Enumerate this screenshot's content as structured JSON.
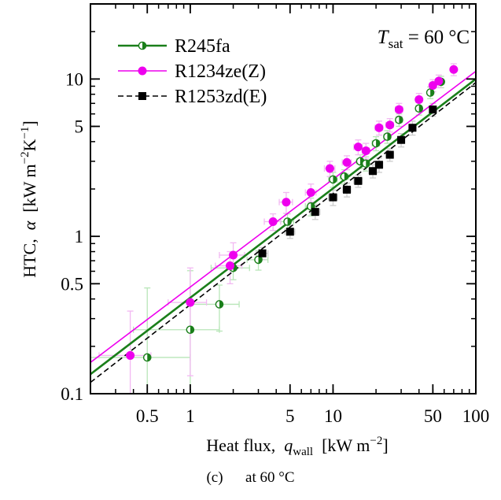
{
  "chart_data": {
    "type": "scatter",
    "annotation": {
      "prefix": "T",
      "subscript": "sat",
      "suffix": " = 60 °C"
    },
    "xlabel": {
      "text": "Heat flux,  ",
      "symbol": "q",
      "subscript": "wall",
      "units": "  [kW m",
      "units_sup": "−2",
      "units_end": "]"
    },
    "ylabel": {
      "text": "HTC,  ",
      "symbol": "α",
      "units": "  [kW m",
      "units_sup1": "−2",
      "units_mid": "K",
      "units_sup2": "−1",
      "units_end": "]"
    },
    "x_scale": "log",
    "y_scale": "log",
    "xlim": [
      0.2,
      100
    ],
    "ylim": [
      0.1,
      30
    ],
    "x_ticks": [
      {
        "v": 0.5,
        "label": "0.5"
      },
      {
        "v": 1,
        "label": "1"
      },
      {
        "v": 5,
        "label": "5"
      },
      {
        "v": 10,
        "label": "10"
      },
      {
        "v": 50,
        "label": "50"
      },
      {
        "v": 100,
        "label": "100"
      }
    ],
    "y_ticks": [
      {
        "v": 0.1,
        "label": "0.1"
      },
      {
        "v": 0.5,
        "label": "0.5"
      },
      {
        "v": 1,
        "label": "1"
      },
      {
        "v": 5,
        "label": "5"
      },
      {
        "v": 10,
        "label": "10"
      }
    ],
    "legend_position": "top-left",
    "series": [
      {
        "name": "R245fa",
        "color": "#1a7f1a",
        "errorbar_color": "#b8e6b8",
        "marker": "half-filled-circle",
        "line_style": "solid",
        "fit": [
          [
            0.2,
            0.133
          ],
          [
            100,
            10.0
          ]
        ],
        "points": [
          {
            "x": 0.5,
            "y": 0.17,
            "xerr": 0.5,
            "yerr": 0.3
          },
          {
            "x": 1.0,
            "y": 0.255,
            "xerr": 0.6,
            "yerr": 0.35
          },
          {
            "x": 1.6,
            "y": 0.37,
            "xerr": 0.6,
            "yerr": 0.12
          },
          {
            "x": 2.0,
            "y": 0.63,
            "xerr": 0.6,
            "yerr": 0.1
          },
          {
            "x": 3.0,
            "y": 0.71,
            "xerr": 0.5,
            "yerr": 0.1
          },
          {
            "x": 4.8,
            "y": 1.24,
            "xerr": 0.5,
            "yerr": 0.15
          },
          {
            "x": 7.0,
            "y": 1.55,
            "xerr": 0.6,
            "yerr": 0.2
          },
          {
            "x": 10.0,
            "y": 2.3,
            "xerr": 0.7,
            "yerr": 0.25
          },
          {
            "x": 12.0,
            "y": 2.4,
            "xerr": 0.8,
            "yerr": 0.25
          },
          {
            "x": 15.5,
            "y": 3.0,
            "xerr": 0.9,
            "yerr": 0.3
          },
          {
            "x": 17.0,
            "y": 2.9,
            "xerr": 1.0,
            "yerr": 0.3
          },
          {
            "x": 20.0,
            "y": 3.9,
            "xerr": 1.2,
            "yerr": 0.4
          },
          {
            "x": 24.0,
            "y": 4.3,
            "xerr": 1.3,
            "yerr": 0.4
          },
          {
            "x": 29.0,
            "y": 5.5,
            "xerr": 1.5,
            "yerr": 0.5
          },
          {
            "x": 40.0,
            "y": 6.5,
            "xerr": 2.0,
            "yerr": 0.6
          },
          {
            "x": 48.0,
            "y": 8.2,
            "xerr": 2.0,
            "yerr": 0.7
          },
          {
            "x": 57.0,
            "y": 9.6,
            "xerr": 2.5,
            "yerr": 0.8
          }
        ]
      },
      {
        "name": "R1234ze(Z)",
        "color": "#ee00ee",
        "errorbar_color": "#f2b8f2",
        "marker": "filled-circle",
        "line_style": "solid",
        "fit": [
          [
            0.2,
            0.158
          ],
          [
            100,
            11.2
          ]
        ],
        "points": [
          {
            "x": 0.38,
            "y": 0.175,
            "xerr": 0.15,
            "yerr": 0.16
          },
          {
            "x": 1.0,
            "y": 0.38,
            "xerr": 0.3,
            "yerr": 0.25
          },
          {
            "x": 1.9,
            "y": 0.65,
            "xerr": 0.4,
            "yerr": 0.15
          },
          {
            "x": 2.0,
            "y": 0.76,
            "xerr": 0.4,
            "yerr": 0.15
          },
          {
            "x": 3.8,
            "y": 1.24,
            "xerr": 0.5,
            "yerr": 0.15
          },
          {
            "x": 4.7,
            "y": 1.65,
            "xerr": 0.5,
            "yerr": 0.25
          },
          {
            "x": 7.0,
            "y": 1.9,
            "xerr": 0.6,
            "yerr": 0.25
          },
          {
            "x": 9.5,
            "y": 2.7,
            "xerr": 0.8,
            "yerr": 0.3
          },
          {
            "x": 12.5,
            "y": 2.95,
            "xerr": 0.9,
            "yerr": 0.3
          },
          {
            "x": 15.0,
            "y": 3.7,
            "xerr": 1.0,
            "yerr": 0.4
          },
          {
            "x": 17.0,
            "y": 3.5,
            "xerr": 1.0,
            "yerr": 0.4
          },
          {
            "x": 21.0,
            "y": 4.9,
            "xerr": 1.3,
            "yerr": 0.5
          },
          {
            "x": 25.0,
            "y": 5.1,
            "xerr": 1.5,
            "yerr": 0.5
          },
          {
            "x": 29.0,
            "y": 6.4,
            "xerr": 1.7,
            "yerr": 0.6
          },
          {
            "x": 40.0,
            "y": 7.4,
            "xerr": 2.0,
            "yerr": 0.7
          },
          {
            "x": 50.0,
            "y": 9.1,
            "xerr": 2.5,
            "yerr": 0.8
          },
          {
            "x": 55.0,
            "y": 9.7,
            "xerr": 2.5,
            "yerr": 0.9
          },
          {
            "x": 70.0,
            "y": 11.5,
            "xerr": 3.0,
            "yerr": 1.0
          }
        ]
      },
      {
        "name": "R1253zd(E)",
        "color": "#000000",
        "errorbar_color": "#cccccc",
        "marker": "filled-square",
        "line_style": "dashed",
        "fit": [
          [
            0.2,
            0.118
          ],
          [
            100,
            9.5
          ]
        ],
        "points": [
          {
            "x": 3.2,
            "y": 0.78,
            "xerr": 0.3,
            "yerr": 0.07
          },
          {
            "x": 5.0,
            "y": 1.07,
            "xerr": 0.4,
            "yerr": 0.1
          },
          {
            "x": 7.5,
            "y": 1.43,
            "xerr": 0.6,
            "yerr": 0.15
          },
          {
            "x": 10.0,
            "y": 1.77,
            "xerr": 0.7,
            "yerr": 0.2
          },
          {
            "x": 12.5,
            "y": 1.98,
            "xerr": 0.8,
            "yerr": 0.2
          },
          {
            "x": 15.0,
            "y": 2.25,
            "xerr": 1.0,
            "yerr": 0.2
          },
          {
            "x": 19.0,
            "y": 2.6,
            "xerr": 1.2,
            "yerr": 0.25
          },
          {
            "x": 21.0,
            "y": 2.85,
            "xerr": 1.3,
            "yerr": 0.3
          },
          {
            "x": 25.0,
            "y": 3.3,
            "xerr": 1.5,
            "yerr": 0.3
          },
          {
            "x": 30.0,
            "y": 4.1,
            "xerr": 1.7,
            "yerr": 0.4
          },
          {
            "x": 36.0,
            "y": 4.9,
            "xerr": 2.0,
            "yerr": 0.5
          },
          {
            "x": 50.0,
            "y": 6.4,
            "xerr": 2.5,
            "yerr": 0.6
          }
        ]
      }
    ]
  },
  "caption": {
    "text": "(c)      at 60 °C"
  }
}
